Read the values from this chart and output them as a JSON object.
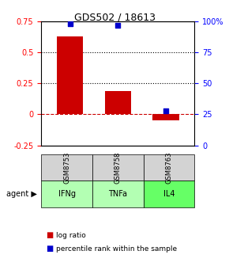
{
  "title": "GDS502 / 18613",
  "samples": [
    "GSM8753",
    "GSM8758",
    "GSM8763"
  ],
  "agents": [
    "IFNg",
    "TNFa",
    "IL4"
  ],
  "log_ratio": [
    0.63,
    0.19,
    -0.05
  ],
  "percentile": [
    98,
    97,
    28
  ],
  "bar_color": "#cc0000",
  "pct_color": "#0000cc",
  "ylim_left": [
    -0.25,
    0.75
  ],
  "ylim_right": [
    0,
    100
  ],
  "yticks_left": [
    -0.25,
    0,
    0.25,
    0.5,
    0.75
  ],
  "yticks_right": [
    0,
    25,
    50,
    75,
    100
  ],
  "ytick_labels_right": [
    "0",
    "25",
    "50",
    "75",
    "100%"
  ],
  "hlines_dotted": [
    0.25,
    0.5
  ],
  "hline_dashed": 0,
  "agent_colors": [
    "#b3ffb3",
    "#b3ffb3",
    "#66ff66"
  ],
  "gsm_color": "#d3d3d3",
  "bar_width": 0.55
}
